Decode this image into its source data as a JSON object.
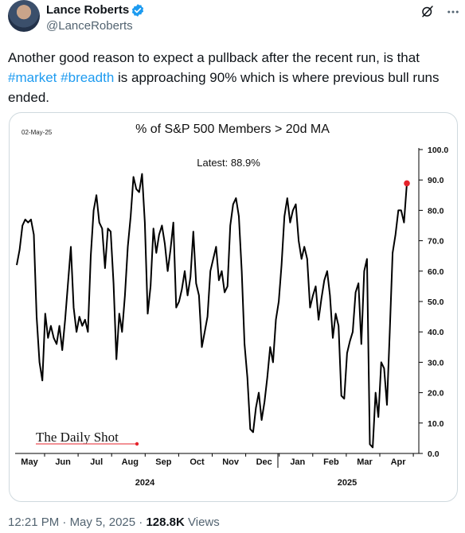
{
  "tweet": {
    "author_name": "Lance Roberts",
    "author_handle": "@LanceRoberts",
    "text_before": "Another good reason to expect a pullback after the recent run, is that ",
    "hashtag_market": "#market",
    "hashtag_breadth": "#breadth",
    "text_after": " is approaching 90% which is where previous bull runs ended."
  },
  "footer": {
    "time": "12:21 PM",
    "sep1": "·",
    "date": "May 5, 2025",
    "sep2": "·",
    "views_count": "128.8K",
    "views_label": "Views"
  },
  "icons": {
    "verified": "verified-badge-icon",
    "grok": "grok-icon",
    "more": "more-icon"
  },
  "colors": {
    "accent": "#1d9bf0",
    "line": "#000000",
    "latest_marker": "#e5232b"
  },
  "chart_data": {
    "type": "line",
    "title": "% of S&P 500 Members > 20d MA",
    "date_label": "02-May-25",
    "annotation": "Latest:  88.9%",
    "watermark": "The Daily Shot",
    "ylim": [
      0,
      100
    ],
    "y_ticks": [
      "100.0",
      "90.0",
      "80.0",
      "70.0",
      "60.0",
      "50.0",
      "40.0",
      "30.0",
      "20.0",
      "10.0",
      "0.0"
    ],
    "x_ticks": [
      "May",
      "Jun",
      "Jul",
      "Aug",
      "Sep",
      "Oct",
      "Nov",
      "Dec",
      "Jan",
      "Feb",
      "Mar",
      "Apr"
    ],
    "year_labels": [
      "2024",
      "2025"
    ],
    "latest_value": 88.9,
    "series": [
      {
        "values": [
          62,
          67,
          75,
          77,
          76,
          77,
          72,
          45,
          30,
          24,
          46,
          38,
          42,
          38,
          36,
          42,
          34,
          44,
          56,
          68,
          48,
          40,
          45,
          42,
          44,
          40,
          65,
          80,
          85,
          76,
          74,
          61,
          74,
          73,
          56,
          31,
          46,
          40,
          52,
          68,
          78,
          91,
          87,
          86,
          92,
          76,
          46,
          55,
          74,
          66,
          72,
          75,
          69,
          60,
          67,
          76,
          48,
          50,
          54,
          60,
          52,
          58,
          73,
          56,
          52,
          35,
          40,
          45,
          60,
          64,
          68,
          57,
          60,
          53,
          55,
          75,
          82,
          84,
          78,
          60,
          36,
          25,
          8,
          7,
          15,
          20,
          11,
          17,
          25,
          35,
          30,
          44,
          50,
          62,
          78,
          84,
          76,
          80,
          82,
          70,
          64,
          68,
          64,
          48,
          52,
          55,
          44,
          51,
          57,
          60,
          52,
          38,
          46,
          42,
          19,
          18,
          33,
          37,
          40,
          53,
          56,
          36,
          60,
          64,
          3,
          2,
          20,
          12,
          30,
          28,
          16,
          40,
          66,
          72,
          80,
          80,
          76,
          88.9
        ]
      }
    ]
  }
}
